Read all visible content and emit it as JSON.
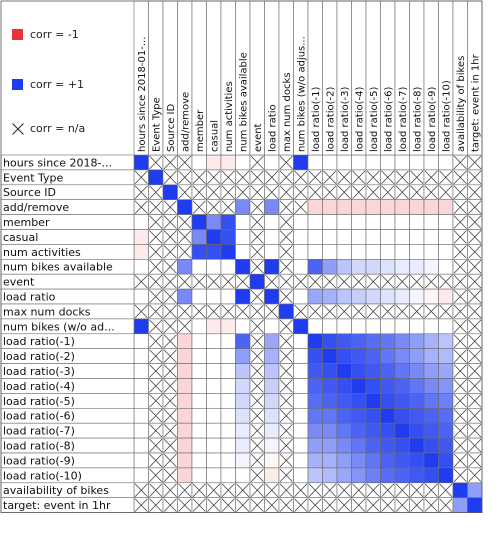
{
  "legend": {
    "neg_label": "corr = -1",
    "pos_label": "corr = +1",
    "na_label": "corr = n/a",
    "neg_color": "#e8323c",
    "pos_color": "#1f3cf0",
    "na_icon": "cross-icon"
  },
  "labels": {
    "columns": [
      "hours since 2018-01-...",
      "Event Type",
      "Source ID",
      "add/remove",
      "member",
      "casual",
      "num activities",
      "num bikes available",
      "event",
      "load ratio",
      "max num docks",
      "num bikes (w/o adjus...",
      "load ratio(-1)",
      "load ratio(-2)",
      "load ratio(-3)",
      "load ratio(-4)",
      "load ratio(-5)",
      "load ratio(-6)",
      "load ratio(-7)",
      "load ratio(-8)",
      "load ratio(-9)",
      "load ratio(-10)",
      "availability of bikes",
      "target: event in 1hr"
    ],
    "rows": [
      "hours since 2018-...",
      "Event Type",
      "Source ID",
      "add/remove",
      "member",
      "casual",
      "num activities",
      "num bikes available",
      "event",
      "load ratio",
      "max num docks",
      "num bikes (w/o ad...",
      "load ratio(-1)",
      "load ratio(-2)",
      "load ratio(-3)",
      "load ratio(-4)",
      "load ratio(-5)",
      "load ratio(-6)",
      "load ratio(-7)",
      "load ratio(-8)",
      "load ratio(-9)",
      "load ratio(-10)",
      "availability of bikes",
      "target: event in 1hr"
    ]
  },
  "chart_data": {
    "type": "heatmap",
    "color_scale": {
      "min": -1,
      "max": 1,
      "na": "cross"
    },
    "categories": [
      "hours since 2018-01-...",
      "Event Type",
      "Source ID",
      "add/remove",
      "member",
      "casual",
      "num activities",
      "num bikes available",
      "event",
      "load ratio",
      "max num docks",
      "num bikes (w/o adjus...",
      "load ratio(-1)",
      "load ratio(-2)",
      "load ratio(-3)",
      "load ratio(-4)",
      "load ratio(-5)",
      "load ratio(-6)",
      "load ratio(-7)",
      "load ratio(-8)",
      "load ratio(-9)",
      "load ratio(-10)",
      "availability of bikes",
      "target: event in 1hr"
    ],
    "matrix": [
      [
        1,
        null,
        null,
        null,
        0,
        -0.1,
        -0.1,
        0,
        null,
        0,
        null,
        1,
        0,
        0,
        0,
        0,
        0,
        0,
        0,
        0,
        0,
        0,
        null,
        null
      ],
      [
        null,
        1,
        null,
        null,
        null,
        null,
        null,
        null,
        null,
        null,
        null,
        null,
        null,
        null,
        null,
        null,
        null,
        null,
        null,
        null,
        null,
        null,
        null,
        null
      ],
      [
        null,
        null,
        1,
        null,
        null,
        null,
        null,
        null,
        null,
        null,
        null,
        null,
        null,
        null,
        null,
        null,
        null,
        null,
        null,
        null,
        null,
        null,
        null,
        null
      ],
      [
        null,
        null,
        null,
        1,
        null,
        null,
        null,
        0.6,
        null,
        0.6,
        null,
        null,
        -0.2,
        -0.2,
        -0.2,
        -0.2,
        -0.2,
        -0.2,
        -0.2,
        -0.2,
        -0.2,
        -0.2,
        null,
        null
      ],
      [
        0,
        null,
        null,
        null,
        1,
        0.6,
        0.9,
        0,
        null,
        0,
        null,
        0,
        0,
        0,
        0,
        0,
        0,
        0,
        0,
        0,
        0,
        0,
        null,
        null
      ],
      [
        -0.1,
        null,
        null,
        null,
        0.6,
        1,
        0.9,
        0,
        null,
        0,
        null,
        0,
        0,
        0,
        0,
        0,
        0,
        0,
        0,
        0,
        0,
        0,
        null,
        null
      ],
      [
        -0.1,
        null,
        null,
        null,
        0.9,
        0.9,
        1,
        0,
        null,
        0,
        null,
        0,
        0,
        0,
        0,
        0,
        0,
        0,
        0,
        0,
        0,
        0,
        null,
        null
      ],
      [
        0,
        null,
        null,
        0.6,
        0,
        0,
        0,
        1,
        null,
        1,
        null,
        0,
        0.8,
        0.5,
        0.3,
        0.2,
        0.2,
        0.15,
        0.1,
        0.1,
        0.05,
        0,
        null,
        null
      ],
      [
        null,
        null,
        null,
        null,
        null,
        null,
        null,
        null,
        1,
        null,
        null,
        null,
        null,
        null,
        null,
        null,
        null,
        null,
        null,
        null,
        null,
        null,
        null,
        null
      ],
      [
        0,
        null,
        null,
        0.6,
        0,
        0,
        0,
        1,
        null,
        1,
        null,
        0,
        0.45,
        0.4,
        0.3,
        0.25,
        0.2,
        0.15,
        0.1,
        0.05,
        -0.05,
        -0.1,
        null,
        null
      ],
      [
        null,
        null,
        null,
        null,
        null,
        null,
        null,
        null,
        null,
        null,
        1,
        null,
        null,
        null,
        null,
        null,
        null,
        null,
        null,
        null,
        null,
        null,
        null,
        null
      ],
      [
        1,
        null,
        null,
        null,
        0,
        -0.1,
        -0.1,
        0,
        null,
        0,
        null,
        1,
        0,
        0,
        0,
        0,
        0,
        0,
        0,
        0,
        0,
        0,
        null,
        null
      ],
      [
        0,
        null,
        null,
        -0.2,
        0,
        0,
        0,
        0.8,
        null,
        0.45,
        null,
        0,
        1,
        0.9,
        0.85,
        0.8,
        0.75,
        0.7,
        0.6,
        0.5,
        0.4,
        0.3,
        null,
        null
      ],
      [
        0,
        null,
        null,
        -0.2,
        0,
        0,
        0,
        0.5,
        null,
        0.4,
        null,
        0,
        0.9,
        1,
        0.9,
        0.85,
        0.8,
        0.7,
        0.6,
        0.5,
        0.4,
        0.35,
        null,
        null
      ],
      [
        0,
        null,
        null,
        -0.2,
        0,
        0,
        0,
        0.3,
        null,
        0.3,
        null,
        0,
        0.85,
        0.9,
        1,
        0.9,
        0.85,
        0.8,
        0.7,
        0.6,
        0.5,
        0.45,
        null,
        null
      ],
      [
        0,
        null,
        null,
        -0.2,
        0,
        0,
        0,
        0.2,
        null,
        0.25,
        null,
        0,
        0.8,
        0.85,
        0.9,
        1,
        0.9,
        0.85,
        0.8,
        0.7,
        0.6,
        0.55,
        null,
        null
      ],
      [
        0,
        null,
        null,
        -0.2,
        0,
        0,
        0,
        0.2,
        null,
        0.2,
        null,
        0,
        0.75,
        0.8,
        0.85,
        0.9,
        1,
        0.9,
        0.85,
        0.8,
        0.7,
        0.65,
        null,
        null
      ],
      [
        0,
        null,
        null,
        -0.2,
        0,
        0,
        0,
        0.15,
        null,
        0.15,
        null,
        0,
        0.7,
        0.7,
        0.8,
        0.85,
        0.9,
        1,
        0.9,
        0.85,
        0.8,
        0.75,
        null,
        null
      ],
      [
        0,
        null,
        null,
        -0.2,
        0,
        0,
        0,
        0.1,
        null,
        0.1,
        null,
        0,
        0.6,
        0.6,
        0.7,
        0.8,
        0.85,
        0.9,
        1,
        0.9,
        0.85,
        0.8,
        null,
        null
      ],
      [
        0,
        null,
        null,
        -0.2,
        0,
        0,
        0,
        0.1,
        null,
        0.05,
        null,
        0,
        0.5,
        0.5,
        0.6,
        0.7,
        0.8,
        0.85,
        0.9,
        1,
        0.9,
        0.85,
        null,
        null
      ],
      [
        0,
        null,
        null,
        -0.2,
        0,
        0,
        0,
        0.05,
        null,
        -0.05,
        null,
        0,
        0.4,
        0.4,
        0.5,
        0.6,
        0.7,
        0.8,
        0.85,
        0.9,
        1,
        0.9,
        null,
        null
      ],
      [
        0,
        null,
        null,
        -0.2,
        0,
        0,
        0,
        0,
        null,
        -0.1,
        null,
        0,
        0.3,
        0.35,
        0.45,
        0.55,
        0.65,
        0.75,
        0.8,
        0.85,
        0.9,
        1,
        null,
        null
      ],
      [
        null,
        null,
        null,
        null,
        null,
        null,
        null,
        null,
        null,
        null,
        null,
        null,
        null,
        null,
        null,
        null,
        null,
        null,
        null,
        null,
        null,
        null,
        1,
        0.5
      ],
      [
        null,
        null,
        null,
        null,
        null,
        null,
        null,
        null,
        null,
        null,
        null,
        null,
        null,
        null,
        null,
        null,
        null,
        null,
        null,
        null,
        null,
        null,
        0.5,
        1
      ]
    ]
  }
}
